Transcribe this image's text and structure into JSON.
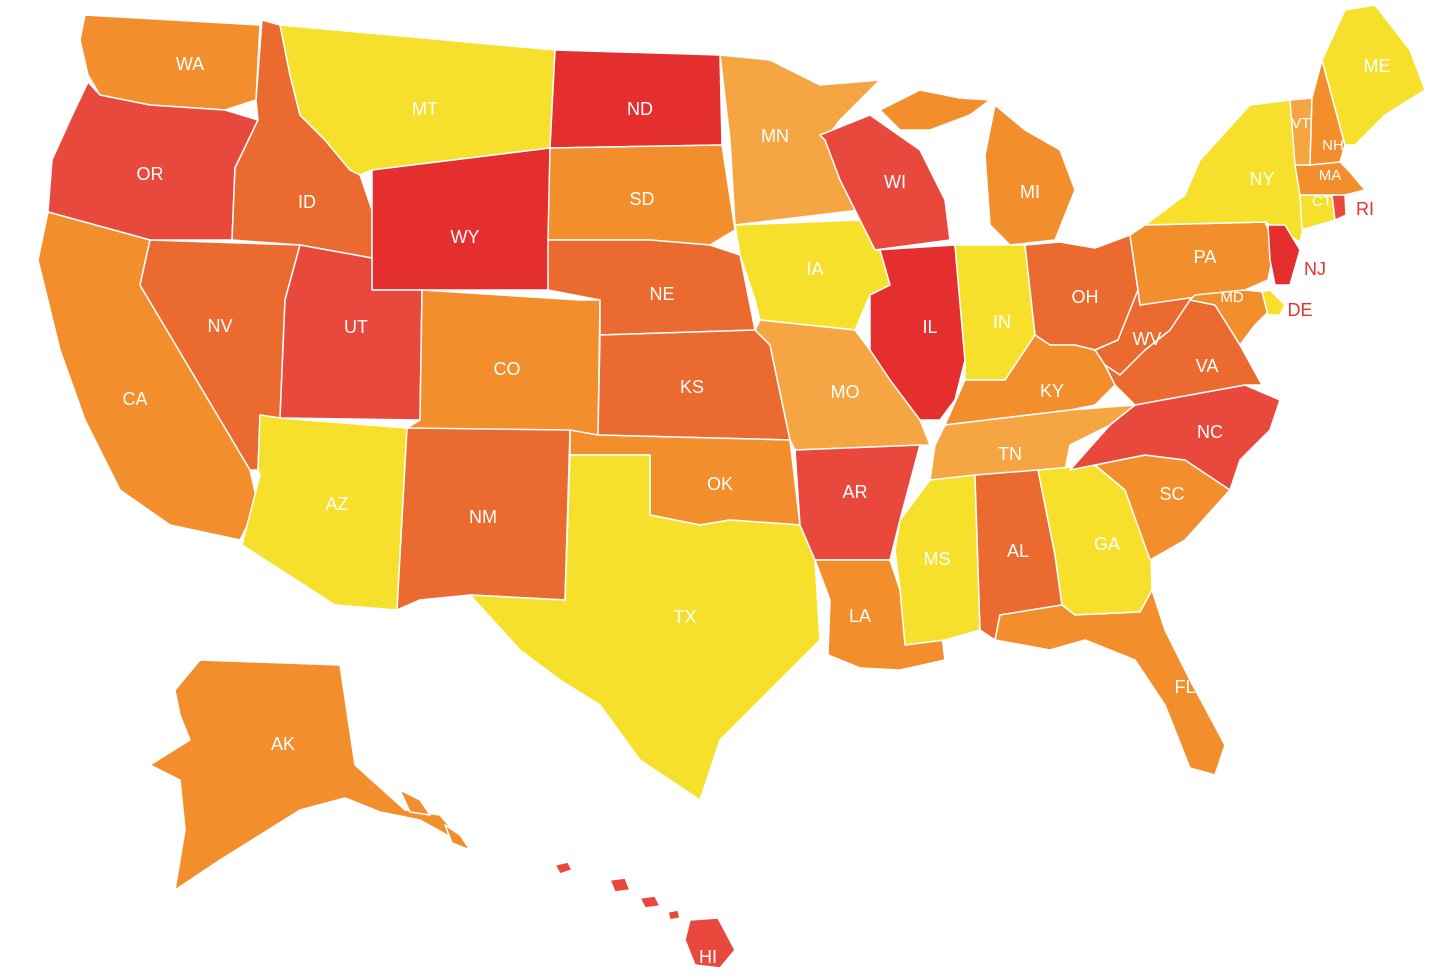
{
  "colors": {
    "yellow": "#f6e02c",
    "light_orange": "#f6a543",
    "orange": "#f28e2c",
    "dark_orange": "#ea6a2f",
    "red_orange": "#e9493d",
    "red": "#e52f2f"
  },
  "states": [
    {
      "id": "WA",
      "label": "WA",
      "color": "orange"
    },
    {
      "id": "OR",
      "label": "OR",
      "color": "red_orange"
    },
    {
      "id": "CA",
      "label": "CA",
      "color": "orange"
    },
    {
      "id": "ID",
      "label": "ID",
      "color": "dark_orange"
    },
    {
      "id": "NV",
      "label": "NV",
      "color": "dark_orange"
    },
    {
      "id": "MT",
      "label": "MT",
      "color": "yellow"
    },
    {
      "id": "WY",
      "label": "WY",
      "color": "red"
    },
    {
      "id": "UT",
      "label": "UT",
      "color": "red_orange"
    },
    {
      "id": "AZ",
      "label": "AZ",
      "color": "yellow"
    },
    {
      "id": "CO",
      "label": "CO",
      "color": "orange"
    },
    {
      "id": "NM",
      "label": "NM",
      "color": "dark_orange"
    },
    {
      "id": "ND",
      "label": "ND",
      "color": "red"
    },
    {
      "id": "SD",
      "label": "SD",
      "color": "orange"
    },
    {
      "id": "NE",
      "label": "NE",
      "color": "dark_orange"
    },
    {
      "id": "KS",
      "label": "KS",
      "color": "dark_orange"
    },
    {
      "id": "OK",
      "label": "OK",
      "color": "orange"
    },
    {
      "id": "TX",
      "label": "TX",
      "color": "yellow"
    },
    {
      "id": "MN",
      "label": "MN",
      "color": "light_orange"
    },
    {
      "id": "IA",
      "label": "IA",
      "color": "yellow"
    },
    {
      "id": "MO",
      "label": "MO",
      "color": "light_orange"
    },
    {
      "id": "AR",
      "label": "AR",
      "color": "red_orange"
    },
    {
      "id": "LA",
      "label": "LA",
      "color": "orange"
    },
    {
      "id": "WI",
      "label": "WI",
      "color": "red_orange"
    },
    {
      "id": "IL",
      "label": "IL",
      "color": "red"
    },
    {
      "id": "MI",
      "label": "MI",
      "color": "orange"
    },
    {
      "id": "IN",
      "label": "IN",
      "color": "yellow"
    },
    {
      "id": "OH",
      "label": "OH",
      "color": "dark_orange"
    },
    {
      "id": "KY",
      "label": "KY",
      "color": "orange"
    },
    {
      "id": "TN",
      "label": "TN",
      "color": "light_orange"
    },
    {
      "id": "MS",
      "label": "MS",
      "color": "yellow"
    },
    {
      "id": "AL",
      "label": "AL",
      "color": "dark_orange"
    },
    {
      "id": "GA",
      "label": "GA",
      "color": "yellow"
    },
    {
      "id": "FL",
      "label": "FL",
      "color": "orange"
    },
    {
      "id": "SC",
      "label": "SC",
      "color": "orange"
    },
    {
      "id": "NC",
      "label": "NC",
      "color": "red_orange"
    },
    {
      "id": "VA",
      "label": "VA",
      "color": "dark_orange"
    },
    {
      "id": "WV",
      "label": "WV",
      "color": "dark_orange"
    },
    {
      "id": "PA",
      "label": "PA",
      "color": "orange"
    },
    {
      "id": "NY",
      "label": "NY",
      "color": "yellow"
    },
    {
      "id": "MD",
      "label": "MD",
      "color": "orange"
    },
    {
      "id": "DE",
      "label": "DE",
      "color": "yellow"
    },
    {
      "id": "NJ",
      "label": "NJ",
      "color": "red"
    },
    {
      "id": "CT",
      "label": "CT",
      "color": "yellow"
    },
    {
      "id": "RI",
      "label": "RI",
      "color": "red_orange"
    },
    {
      "id": "MA",
      "label": "MA",
      "color": "orange"
    },
    {
      "id": "VT",
      "label": "VT",
      "color": "light_orange"
    },
    {
      "id": "NH",
      "label": "NH",
      "color": "orange"
    },
    {
      "id": "ME",
      "label": "ME",
      "color": "yellow"
    },
    {
      "id": "AK",
      "label": "AK",
      "color": "orange"
    },
    {
      "id": "HI",
      "label": "HI",
      "color": "red_orange"
    }
  ]
}
